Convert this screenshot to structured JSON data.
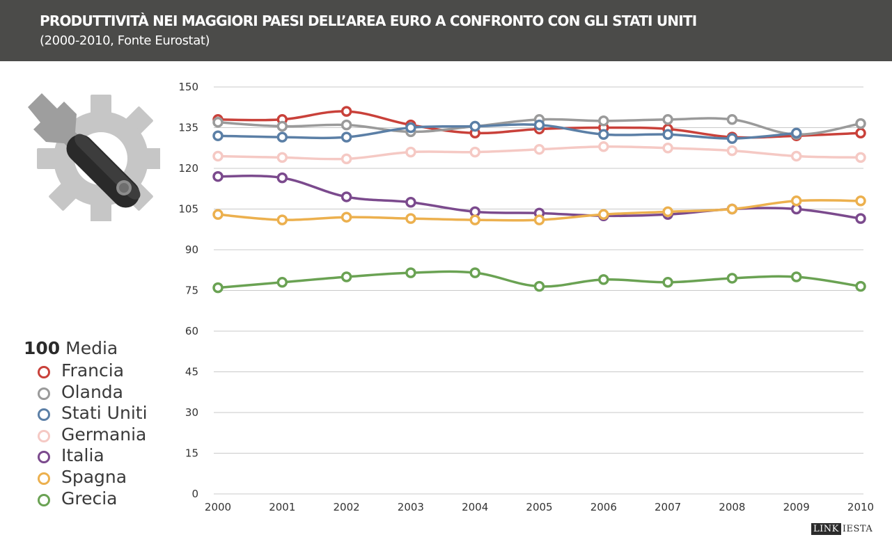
{
  "header": {
    "title": "PRODUTTIVITÀ NEI MAGGIORI PAESI DELL’AREA EURO A CONFRONTO CON GLI STATI UNITI",
    "subtitle": "(2000-2010, Fonte Eurostat)"
  },
  "legend": {
    "average_value": "100",
    "average_label": "Media"
  },
  "brand": {
    "part1": "LINK",
    "part2": "IESTA"
  },
  "chart_data": {
    "type": "line",
    "title": "PRODUTTIVITÀ NEI MAGGIORI PAESI DELL’AREA EURO A CONFRONTO CON GLI STATI UNITI",
    "subtitle": "(2000-2010, Fonte Eurostat)",
    "xlabel": "",
    "ylabel": "",
    "x": [
      "2000",
      "2001",
      "2002",
      "2003",
      "2004",
      "2005",
      "2006",
      "2007",
      "2008",
      "2009",
      "2010"
    ],
    "ylim": [
      0,
      150
    ],
    "yticks": [
      0,
      15,
      30,
      45,
      60,
      75,
      90,
      105,
      120,
      135,
      150
    ],
    "grid": true,
    "legend_position": "bottom-left",
    "series": [
      {
        "name": "Francia",
        "color": "#c9413a",
        "values": [
          138,
          138,
          141,
          136,
          133,
          134.5,
          135,
          134.5,
          131.5,
          132,
          133
        ]
      },
      {
        "name": "Olanda",
        "color": "#9a9a9a",
        "values": [
          137,
          135.5,
          136,
          133.5,
          135.5,
          138,
          137.5,
          138,
          138,
          132.5,
          136.5
        ]
      },
      {
        "name": "Stati Uniti",
        "color": "#5b7fa6",
        "values": [
          132,
          131.5,
          131.5,
          135,
          135.5,
          136,
          132.5,
          132.5,
          131,
          133,
          null
        ]
      },
      {
        "name": "Germania",
        "color": "#f5c9c4",
        "values": [
          124.5,
          124,
          123.5,
          126,
          126,
          127,
          128,
          127.5,
          126.5,
          124.5,
          124
        ]
      },
      {
        "name": "Italia",
        "color": "#7b4a8d",
        "values": [
          117,
          116.5,
          109.5,
          107.5,
          104,
          103.5,
          102.5,
          103,
          105,
          105,
          101.5
        ]
      },
      {
        "name": "Spagna",
        "color": "#ecb04e",
        "values": [
          103,
          101,
          102,
          101.5,
          101,
          101,
          103,
          104,
          105,
          108,
          108
        ]
      },
      {
        "name": "Grecia",
        "color": "#6aa253",
        "values": [
          76,
          78,
          80,
          81.5,
          81.5,
          76.5,
          79,
          78,
          79.5,
          80,
          76.5
        ]
      }
    ]
  }
}
